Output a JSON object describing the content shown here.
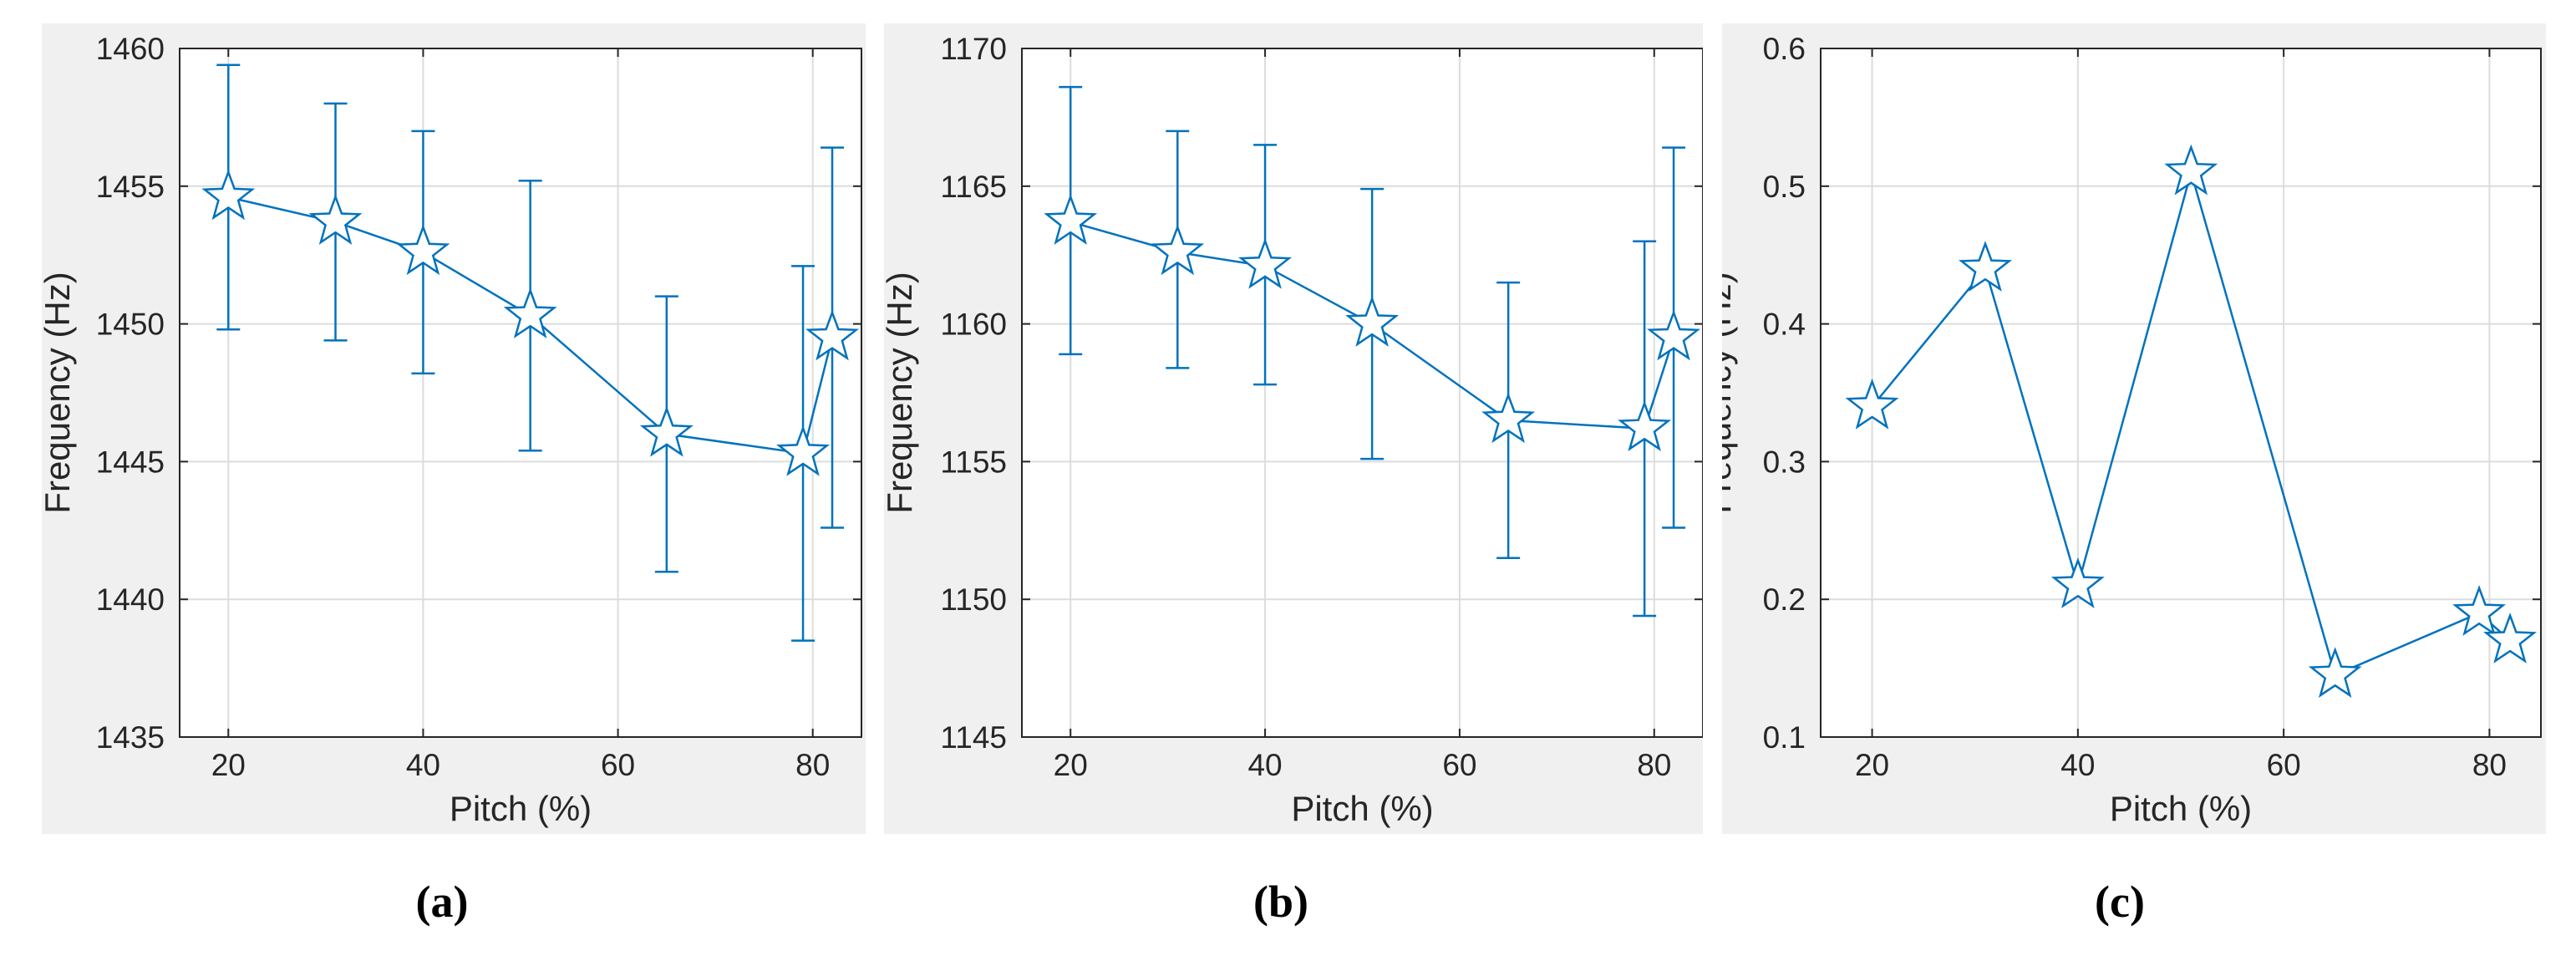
{
  "style": {
    "line_color": "#0072bd",
    "grid_color": "#dcdcdc",
    "panel_bg": "#f0f0f0",
    "text_color": "#262626"
  },
  "captions": [
    "(a)",
    "(b)",
    "(c)"
  ],
  "chart_data": [
    {
      "type": "line",
      "marker": "star",
      "error_bars": true,
      "x": [
        20,
        31,
        40,
        51,
        65,
        79,
        82
      ],
      "y": [
        1454.6,
        1453.7,
        1452.6,
        1450.3,
        1446.0,
        1445.3,
        1449.5
      ],
      "err_low": [
        1449.8,
        1449.4,
        1448.2,
        1445.4,
        1441.0,
        1438.5,
        1442.6
      ],
      "err_high": [
        1459.4,
        1458.0,
        1457.0,
        1455.2,
        1451.0,
        1452.1,
        1456.4
      ],
      "xlabel": "Pitch (%)",
      "ylabel": "Frequency (Hz)",
      "xlim": [
        15,
        85
      ],
      "ylim": [
        1435,
        1460
      ],
      "xticks": [
        20,
        40,
        60,
        80
      ],
      "yticks": [
        1435,
        1440,
        1445,
        1450,
        1455,
        1460
      ],
      "grid": true
    },
    {
      "type": "line",
      "marker": "star",
      "error_bars": true,
      "x": [
        20,
        31,
        40,
        51,
        65,
        79,
        82
      ],
      "y": [
        1163.7,
        1162.6,
        1162.1,
        1160.0,
        1156.5,
        1156.2,
        1159.5
      ],
      "err_low": [
        1158.9,
        1158.4,
        1157.8,
        1155.1,
        1151.5,
        1149.4,
        1152.6
      ],
      "err_high": [
        1168.6,
        1167.0,
        1166.5,
        1164.9,
        1161.5,
        1163.0,
        1166.4
      ],
      "xlabel": "Pitch (%)",
      "ylabel": "Frequency (Hz)",
      "xlim": [
        15,
        85
      ],
      "ylim": [
        1145,
        1170
      ],
      "xticks": [
        20,
        40,
        60,
        80
      ],
      "yticks": [
        1145,
        1150,
        1155,
        1160,
        1165,
        1170
      ],
      "grid": true
    },
    {
      "type": "line",
      "marker": "star",
      "error_bars": false,
      "x": [
        20,
        31,
        40,
        51,
        65,
        79,
        82
      ],
      "y": [
        0.34,
        0.44,
        0.21,
        0.51,
        0.145,
        0.19,
        0.17
      ],
      "xlabel": "Pitch (%)",
      "ylabel": "Frequency (Hz)",
      "xlim": [
        15,
        85
      ],
      "ylim": [
        0.1,
        0.6
      ],
      "xticks": [
        20,
        40,
        60,
        80
      ],
      "yticks": [
        0.1,
        0.2,
        0.3,
        0.4,
        0.5,
        0.6
      ],
      "grid": true
    }
  ]
}
